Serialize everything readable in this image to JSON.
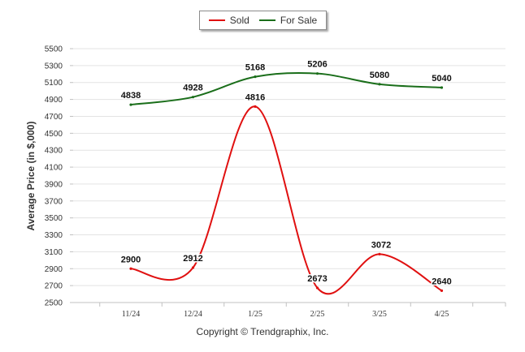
{
  "chart_data": {
    "type": "line",
    "categories": [
      "11/24",
      "12/24",
      "1/25",
      "2/25",
      "3/25",
      "4/25"
    ],
    "series": [
      {
        "name": "Sold",
        "color": "#e01010",
        "values": [
          2900,
          2912,
          4816,
          2673,
          3072,
          2640
        ],
        "labels": [
          "2900",
          "2912",
          "4816",
          "2673",
          "3072",
          "2640"
        ]
      },
      {
        "name": "For Sale",
        "color": "#1a6e1a",
        "values": [
          4838,
          4928,
          5168,
          5206,
          5080,
          5040
        ],
        "labels": [
          "4838",
          "4928",
          "5168",
          "5206",
          "5080",
          "5040"
        ]
      }
    ],
    "ylabel": "Average Price (in $,000)",
    "ylim": [
      2500,
      5500
    ],
    "yticks": [
      "2500",
      "2700",
      "2900",
      "3100",
      "3300",
      "3500",
      "3700",
      "3900",
      "4100",
      "4300",
      "4500",
      "4700",
      "4900",
      "5100",
      "5300",
      "5500"
    ],
    "grid": true,
    "legend_position": "top"
  },
  "footer": {
    "copyright": "Copyright © Trendgraphix, Inc."
  }
}
